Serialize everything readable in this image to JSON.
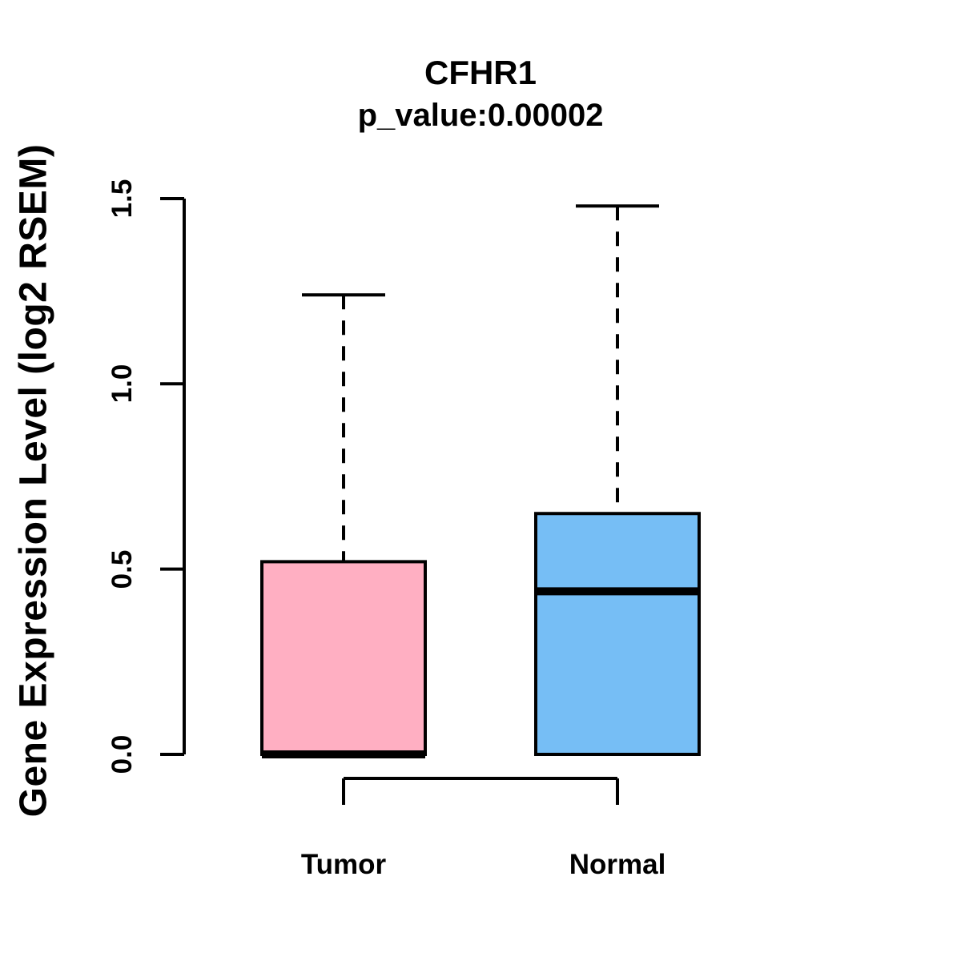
{
  "title": "CFHR1",
  "subtitle": "p_value:0.00002",
  "y_axis_label": "Gene Expression Level (log2 RSEM)",
  "colors": {
    "tumor_fill": "#FFAFC2",
    "normal_fill": "#76BEF5",
    "stroke": "#000000",
    "background": "#FFFFFF"
  },
  "chart_data": {
    "type": "boxplot",
    "title": "CFHR1",
    "subtitle": "p_value:0.00002",
    "xlabel": "",
    "ylabel": "Gene Expression Level (log2 RSEM)",
    "ylim": [
      0,
      1.5
    ],
    "yticks": [
      {
        "value": 0.0,
        "label": "0.0"
      },
      {
        "value": 0.5,
        "label": "0.5"
      },
      {
        "value": 1.0,
        "label": "1.0"
      },
      {
        "value": 1.5,
        "label": "1.5"
      }
    ],
    "categories": [
      "Tumor",
      "Normal"
    ],
    "grid": false,
    "legend": "none",
    "series": [
      {
        "name": "Tumor",
        "color": "#FFAFC2",
        "whisker_low": 0.0,
        "q1": 0.0,
        "median": 0.0,
        "q3": 0.52,
        "whisker_high": 1.24
      },
      {
        "name": "Normal",
        "color": "#76BEF5",
        "whisker_low": 0.0,
        "q1": 0.0,
        "median": 0.44,
        "q3": 0.65,
        "whisker_high": 1.48
      }
    ]
  }
}
